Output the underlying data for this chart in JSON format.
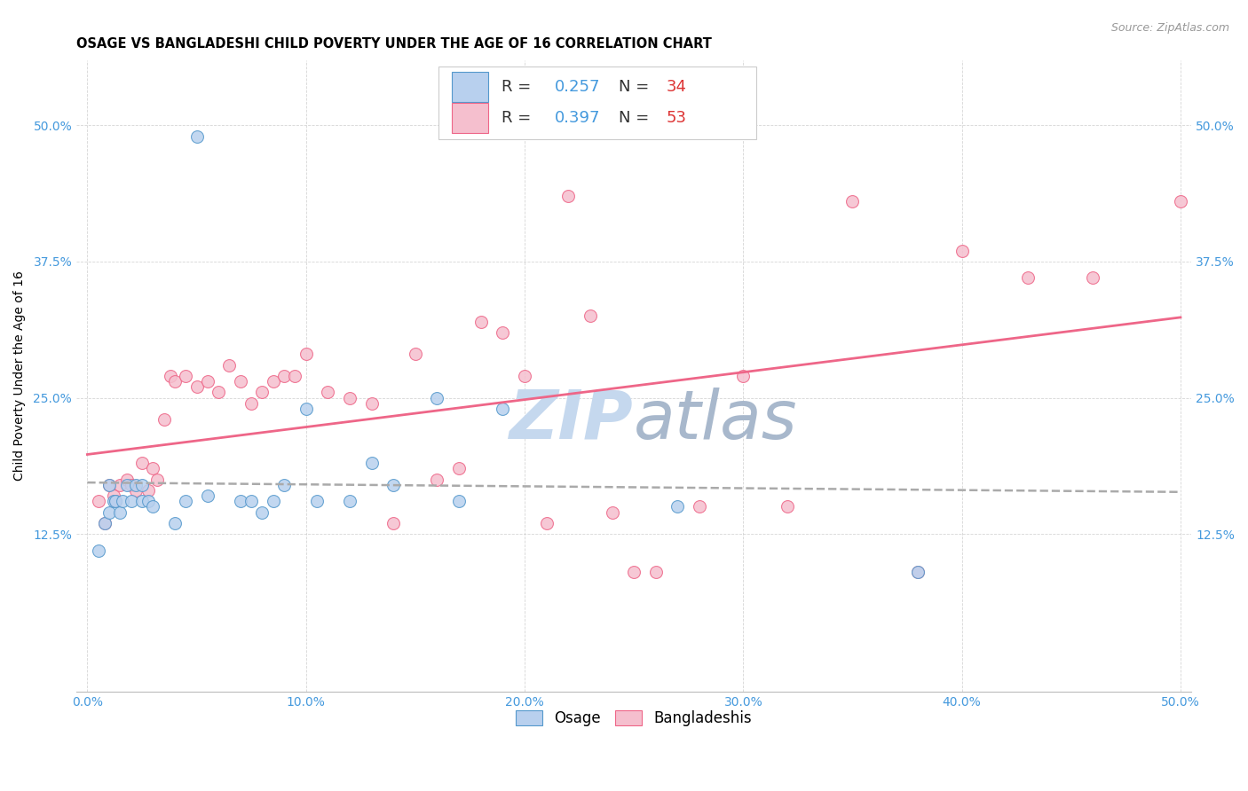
{
  "title": "OSAGE VS BANGLADESHI CHILD POVERTY UNDER THE AGE OF 16 CORRELATION CHART",
  "source": "Source: ZipAtlas.com",
  "ylabel": "Child Poverty Under the Age of 16",
  "xlim": [
    0.0,
    0.5
  ],
  "ylim": [
    0.0,
    0.55
  ],
  "osage_R": 0.257,
  "osage_N": 34,
  "bangladeshi_R": 0.397,
  "bangladeshi_N": 53,
  "osage_color": "#b8d0ee",
  "bangladeshi_color": "#f5bfce",
  "osage_line_color": "#5599cc",
  "bangladeshi_line_color": "#ee6688",
  "watermark_color": "#c8d8ee",
  "tick_color": "#4499dd",
  "osage_x": [
    0.005,
    0.008,
    0.01,
    0.01,
    0.012,
    0.013,
    0.015,
    0.016,
    0.018,
    0.02,
    0.022,
    0.025,
    0.025,
    0.028,
    0.03,
    0.04,
    0.045,
    0.05,
    0.055,
    0.07,
    0.075,
    0.08,
    0.085,
    0.09,
    0.1,
    0.105,
    0.12,
    0.13,
    0.14,
    0.16,
    0.17,
    0.19,
    0.27,
    0.38
  ],
  "osage_y": [
    0.11,
    0.135,
    0.145,
    0.17,
    0.155,
    0.155,
    0.145,
    0.155,
    0.17,
    0.155,
    0.17,
    0.155,
    0.17,
    0.155,
    0.15,
    0.135,
    0.155,
    0.49,
    0.16,
    0.155,
    0.155,
    0.145,
    0.155,
    0.17,
    0.24,
    0.155,
    0.155,
    0.19,
    0.17,
    0.25,
    0.155,
    0.24,
    0.15,
    0.09
  ],
  "bangladeshi_x": [
    0.005,
    0.008,
    0.01,
    0.012,
    0.013,
    0.015,
    0.018,
    0.02,
    0.022,
    0.025,
    0.028,
    0.03,
    0.032,
    0.035,
    0.038,
    0.04,
    0.045,
    0.05,
    0.055,
    0.06,
    0.065,
    0.07,
    0.075,
    0.08,
    0.085,
    0.09,
    0.095,
    0.1,
    0.11,
    0.12,
    0.13,
    0.14,
    0.15,
    0.16,
    0.17,
    0.18,
    0.19,
    0.2,
    0.21,
    0.22,
    0.23,
    0.24,
    0.25,
    0.26,
    0.28,
    0.3,
    0.32,
    0.35,
    0.38,
    0.4,
    0.43,
    0.46,
    0.5
  ],
  "bangladeshi_y": [
    0.155,
    0.135,
    0.17,
    0.16,
    0.155,
    0.17,
    0.175,
    0.17,
    0.165,
    0.19,
    0.165,
    0.185,
    0.175,
    0.23,
    0.27,
    0.265,
    0.27,
    0.26,
    0.265,
    0.255,
    0.28,
    0.265,
    0.245,
    0.255,
    0.265,
    0.27,
    0.27,
    0.29,
    0.255,
    0.25,
    0.245,
    0.135,
    0.29,
    0.175,
    0.185,
    0.32,
    0.31,
    0.27,
    0.135,
    0.435,
    0.325,
    0.145,
    0.09,
    0.09,
    0.15,
    0.27,
    0.15,
    0.43,
    0.09,
    0.385,
    0.36,
    0.36,
    0.43
  ],
  "title_fontsize": 10.5,
  "source_fontsize": 9,
  "label_fontsize": 10,
  "tick_fontsize": 10,
  "legend_fontsize": 12,
  "watermark_fontsize": 55
}
